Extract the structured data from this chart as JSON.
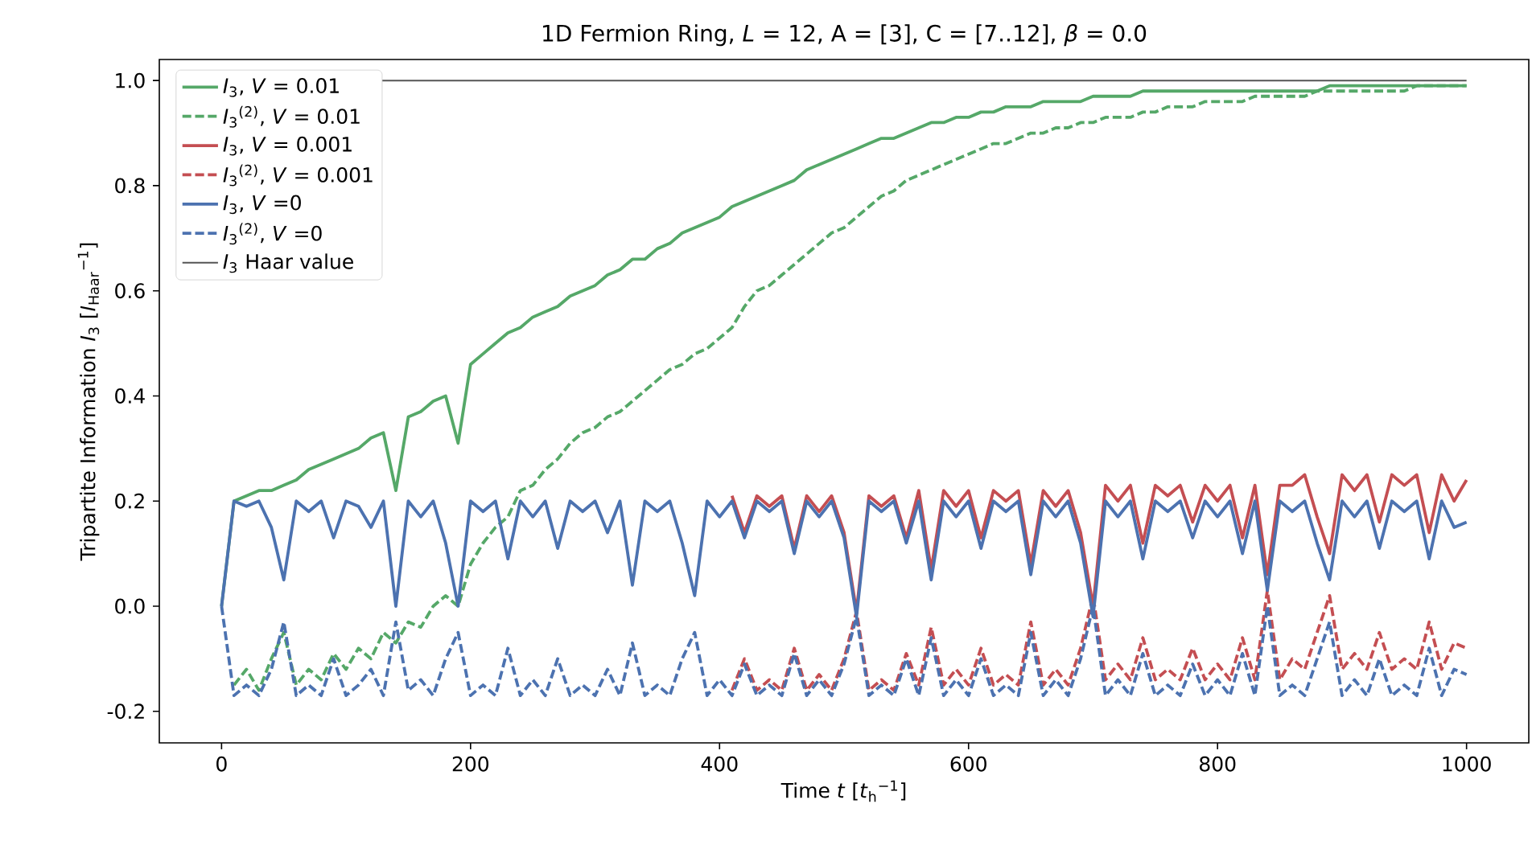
{
  "chart_data": {
    "type": "line",
    "title": "1D Fermion Ring, *L* = 12, A = [3], C = [7..12], *β* = 0.0",
    "xlabel": "Time *t* [*t*$_{h}$$^{−1}$]",
    "ylabel": "Tripartite Information *I*$_{3}$ [*I*$_{Haar}$$^{−1}$]",
    "xlim": [
      -50,
      1050
    ],
    "ylim": [
      -0.26,
      1.04
    ],
    "xticks": [
      0,
      200,
      400,
      600,
      800,
      1000
    ],
    "yticks": [
      -0.2,
      {
        "value": 0.0,
        "label": "0.0"
      },
      0.2,
      0.4,
      0.6,
      0.8,
      {
        "value": 1.0,
        "label": "1.0"
      }
    ],
    "grid": false,
    "legend": "top left",
    "marker": "none",
    "x": [
      0,
      10,
      20,
      30,
      40,
      50,
      60,
      70,
      80,
      90,
      100,
      110,
      120,
      130,
      140,
      150,
      160,
      170,
      180,
      190,
      200,
      210,
      220,
      230,
      240,
      250,
      260,
      270,
      280,
      290,
      300,
      310,
      320,
      330,
      340,
      350,
      360,
      370,
      380,
      390,
      400,
      410,
      420,
      430,
      440,
      450,
      460,
      470,
      480,
      490,
      500,
      510,
      520,
      530,
      540,
      550,
      560,
      570,
      580,
      590,
      600,
      610,
      620,
      630,
      640,
      650,
      660,
      670,
      680,
      690,
      700,
      710,
      720,
      730,
      740,
      750,
      760,
      770,
      780,
      790,
      800,
      810,
      820,
      830,
      840,
      850,
      860,
      870,
      880,
      890,
      900,
      910,
      920,
      930,
      940,
      950,
      960,
      970,
      980,
      990,
      1000
    ],
    "series": [
      {
        "name": "*I*$_{3}$, *V* = 0.01",
        "color": "#55a868",
        "line_style": "solid",
        "values": [
          0.0,
          0.2,
          0.21,
          0.22,
          0.22,
          0.23,
          0.24,
          0.26,
          0.27,
          0.28,
          0.29,
          0.3,
          0.32,
          0.33,
          0.22,
          0.36,
          0.37,
          0.39,
          0.4,
          0.31,
          0.46,
          0.48,
          0.5,
          0.52,
          0.53,
          0.55,
          0.56,
          0.57,
          0.59,
          0.6,
          0.61,
          0.63,
          0.64,
          0.66,
          0.66,
          0.68,
          0.69,
          0.71,
          0.72,
          0.73,
          0.74,
          0.76,
          0.77,
          0.78,
          0.79,
          0.8,
          0.81,
          0.83,
          0.84,
          0.85,
          0.86,
          0.87,
          0.88,
          0.89,
          0.89,
          0.9,
          0.91,
          0.92,
          0.92,
          0.93,
          0.93,
          0.94,
          0.94,
          0.95,
          0.95,
          0.95,
          0.96,
          0.96,
          0.96,
          0.96,
          0.97,
          0.97,
          0.97,
          0.97,
          0.98,
          0.98,
          0.98,
          0.98,
          0.98,
          0.98,
          0.98,
          0.98,
          0.98,
          0.98,
          0.98,
          0.98,
          0.98,
          0.98,
          0.98,
          0.99,
          0.99,
          0.99,
          0.99,
          0.99,
          0.99,
          0.99,
          0.99,
          0.99,
          0.99,
          0.99,
          0.99
        ]
      },
      {
        "name": "*I*$_{3}$$^{(2)}$, *V* = 0.01",
        "color": "#55a868",
        "line_style": "dashed",
        "values": [
          null,
          -0.15,
          -0.12,
          -0.16,
          -0.1,
          -0.05,
          -0.15,
          -0.12,
          -0.14,
          -0.09,
          -0.12,
          -0.08,
          -0.1,
          -0.05,
          -0.07,
          -0.03,
          -0.04,
          0.0,
          0.02,
          0.0,
          0.08,
          0.12,
          0.15,
          0.17,
          0.22,
          0.23,
          0.26,
          0.28,
          0.31,
          0.33,
          0.34,
          0.36,
          0.37,
          0.39,
          0.41,
          0.43,
          0.45,
          0.46,
          0.48,
          0.49,
          0.51,
          0.53,
          0.57,
          0.6,
          0.61,
          0.63,
          0.65,
          0.67,
          0.69,
          0.71,
          0.72,
          0.74,
          0.76,
          0.78,
          0.79,
          0.81,
          0.82,
          0.83,
          0.84,
          0.85,
          0.86,
          0.87,
          0.88,
          0.88,
          0.89,
          0.9,
          0.9,
          0.91,
          0.91,
          0.92,
          0.92,
          0.93,
          0.93,
          0.93,
          0.94,
          0.94,
          0.95,
          0.95,
          0.95,
          0.96,
          0.96,
          0.96,
          0.96,
          0.97,
          0.97,
          0.97,
          0.97,
          0.97,
          0.98,
          0.98,
          0.98,
          0.98,
          0.98,
          0.98,
          0.98,
          0.98,
          0.99,
          0.99,
          0.99,
          0.99,
          0.99
        ]
      },
      {
        "name": "*I*$_{3}$, *V* = 0.001",
        "color": "#c44e52",
        "line_style": "solid",
        "values": [
          null,
          null,
          null,
          null,
          null,
          null,
          null,
          null,
          null,
          null,
          null,
          null,
          null,
          null,
          null,
          null,
          null,
          null,
          null,
          null,
          null,
          null,
          null,
          null,
          null,
          null,
          null,
          null,
          null,
          null,
          null,
          null,
          null,
          null,
          null,
          null,
          null,
          null,
          null,
          null,
          null,
          0.21,
          0.14,
          0.21,
          0.19,
          0.21,
          0.11,
          0.21,
          0.18,
          0.21,
          0.14,
          -0.01,
          0.21,
          0.19,
          0.21,
          0.13,
          0.22,
          0.07,
          0.22,
          0.19,
          0.22,
          0.13,
          0.22,
          0.2,
          0.22,
          0.08,
          0.22,
          0.19,
          0.22,
          0.14,
          0.0,
          0.23,
          0.2,
          0.23,
          0.12,
          0.23,
          0.21,
          0.23,
          0.16,
          0.23,
          0.2,
          0.23,
          0.13,
          0.23,
          0.06,
          0.23,
          0.23,
          0.25,
          0.17,
          0.1,
          0.25,
          0.22,
          0.25,
          0.16,
          0.25,
          0.23,
          0.25,
          0.14,
          0.25,
          0.2,
          0.24
        ]
      },
      {
        "name": "*I*$_{3}$$^{(2)}$, *V* = 0.001",
        "color": "#c44e52",
        "line_style": "dashed",
        "values": [
          null,
          null,
          null,
          null,
          null,
          null,
          null,
          null,
          null,
          null,
          null,
          null,
          null,
          null,
          null,
          null,
          null,
          null,
          null,
          null,
          null,
          null,
          null,
          null,
          null,
          null,
          null,
          null,
          null,
          null,
          null,
          null,
          null,
          null,
          null,
          null,
          null,
          null,
          null,
          null,
          null,
          -0.16,
          -0.1,
          -0.16,
          -0.14,
          -0.16,
          -0.08,
          -0.16,
          -0.13,
          -0.16,
          -0.1,
          -0.01,
          -0.16,
          -0.14,
          -0.16,
          -0.09,
          -0.15,
          -0.04,
          -0.15,
          -0.12,
          -0.15,
          -0.08,
          -0.15,
          -0.13,
          -0.15,
          -0.03,
          -0.15,
          -0.12,
          -0.15,
          -0.08,
          0.02,
          -0.14,
          -0.11,
          -0.14,
          -0.06,
          -0.14,
          -0.12,
          -0.14,
          -0.08,
          -0.14,
          -0.11,
          -0.14,
          -0.06,
          -0.14,
          0.03,
          -0.14,
          -0.1,
          -0.12,
          -0.05,
          0.02,
          -0.12,
          -0.09,
          -0.12,
          -0.05,
          -0.12,
          -0.1,
          -0.12,
          -0.03,
          -0.12,
          -0.07,
          -0.08
        ]
      },
      {
        "name": "*I*$_{3}$, *V* =0",
        "color": "#4c72b0",
        "line_style": "solid",
        "values": [
          0.0,
          0.2,
          0.19,
          0.2,
          0.15,
          0.05,
          0.2,
          0.18,
          0.2,
          0.13,
          0.2,
          0.19,
          0.15,
          0.2,
          0.0,
          0.2,
          0.17,
          0.2,
          0.12,
          0.0,
          0.2,
          0.18,
          0.2,
          0.09,
          0.2,
          0.17,
          0.2,
          0.11,
          0.2,
          0.18,
          0.2,
          0.14,
          0.2,
          0.04,
          0.2,
          0.18,
          0.2,
          0.12,
          0.02,
          0.2,
          0.17,
          0.2,
          0.13,
          0.2,
          0.18,
          0.2,
          0.1,
          0.2,
          0.17,
          0.2,
          0.13,
          -0.02,
          0.2,
          0.18,
          0.2,
          0.12,
          0.2,
          0.05,
          0.2,
          0.17,
          0.2,
          0.11,
          0.2,
          0.18,
          0.2,
          0.06,
          0.2,
          0.17,
          0.2,
          0.12,
          -0.02,
          0.2,
          0.17,
          0.2,
          0.09,
          0.2,
          0.18,
          0.2,
          0.13,
          0.2,
          0.17,
          0.2,
          0.1,
          0.2,
          0.03,
          0.2,
          0.18,
          0.2,
          0.12,
          0.05,
          0.2,
          0.17,
          0.2,
          0.11,
          0.2,
          0.18,
          0.2,
          0.09,
          0.2,
          0.15,
          0.16
        ]
      },
      {
        "name": "*I*$_{3}$$^{(2)}$, *V* =0",
        "color": "#4c72b0",
        "line_style": "dashed",
        "values": [
          0.0,
          -0.17,
          -0.15,
          -0.17,
          -0.12,
          -0.03,
          -0.17,
          -0.15,
          -0.17,
          -0.1,
          -0.17,
          -0.15,
          -0.12,
          -0.17,
          -0.03,
          -0.16,
          -0.14,
          -0.17,
          -0.1,
          -0.05,
          -0.17,
          -0.15,
          -0.17,
          -0.08,
          -0.17,
          -0.14,
          -0.17,
          -0.1,
          -0.17,
          -0.15,
          -0.17,
          -0.12,
          -0.17,
          -0.07,
          -0.17,
          -0.15,
          -0.17,
          -0.1,
          -0.05,
          -0.17,
          -0.14,
          -0.17,
          -0.11,
          -0.17,
          -0.15,
          -0.17,
          -0.09,
          -0.17,
          -0.14,
          -0.17,
          -0.11,
          -0.02,
          -0.17,
          -0.15,
          -0.17,
          -0.1,
          -0.17,
          -0.06,
          -0.17,
          -0.14,
          -0.17,
          -0.1,
          -0.17,
          -0.15,
          -0.17,
          -0.05,
          -0.17,
          -0.14,
          -0.17,
          -0.1,
          0.0,
          -0.17,
          -0.14,
          -0.17,
          -0.09,
          -0.17,
          -0.15,
          -0.17,
          -0.11,
          -0.17,
          -0.14,
          -0.17,
          -0.09,
          -0.17,
          0.0,
          -0.17,
          -0.15,
          -0.17,
          -0.1,
          -0.03,
          -0.17,
          -0.14,
          -0.17,
          -0.1,
          -0.17,
          -0.15,
          -0.17,
          -0.08,
          -0.17,
          -0.12,
          -0.13
        ]
      }
    ],
    "ref_lines": [
      {
        "axis": "y",
        "value": 1.0,
        "label": "*I*$_{3}$ Haar value",
        "color": "#555555",
        "line_style": "solid"
      }
    ]
  }
}
